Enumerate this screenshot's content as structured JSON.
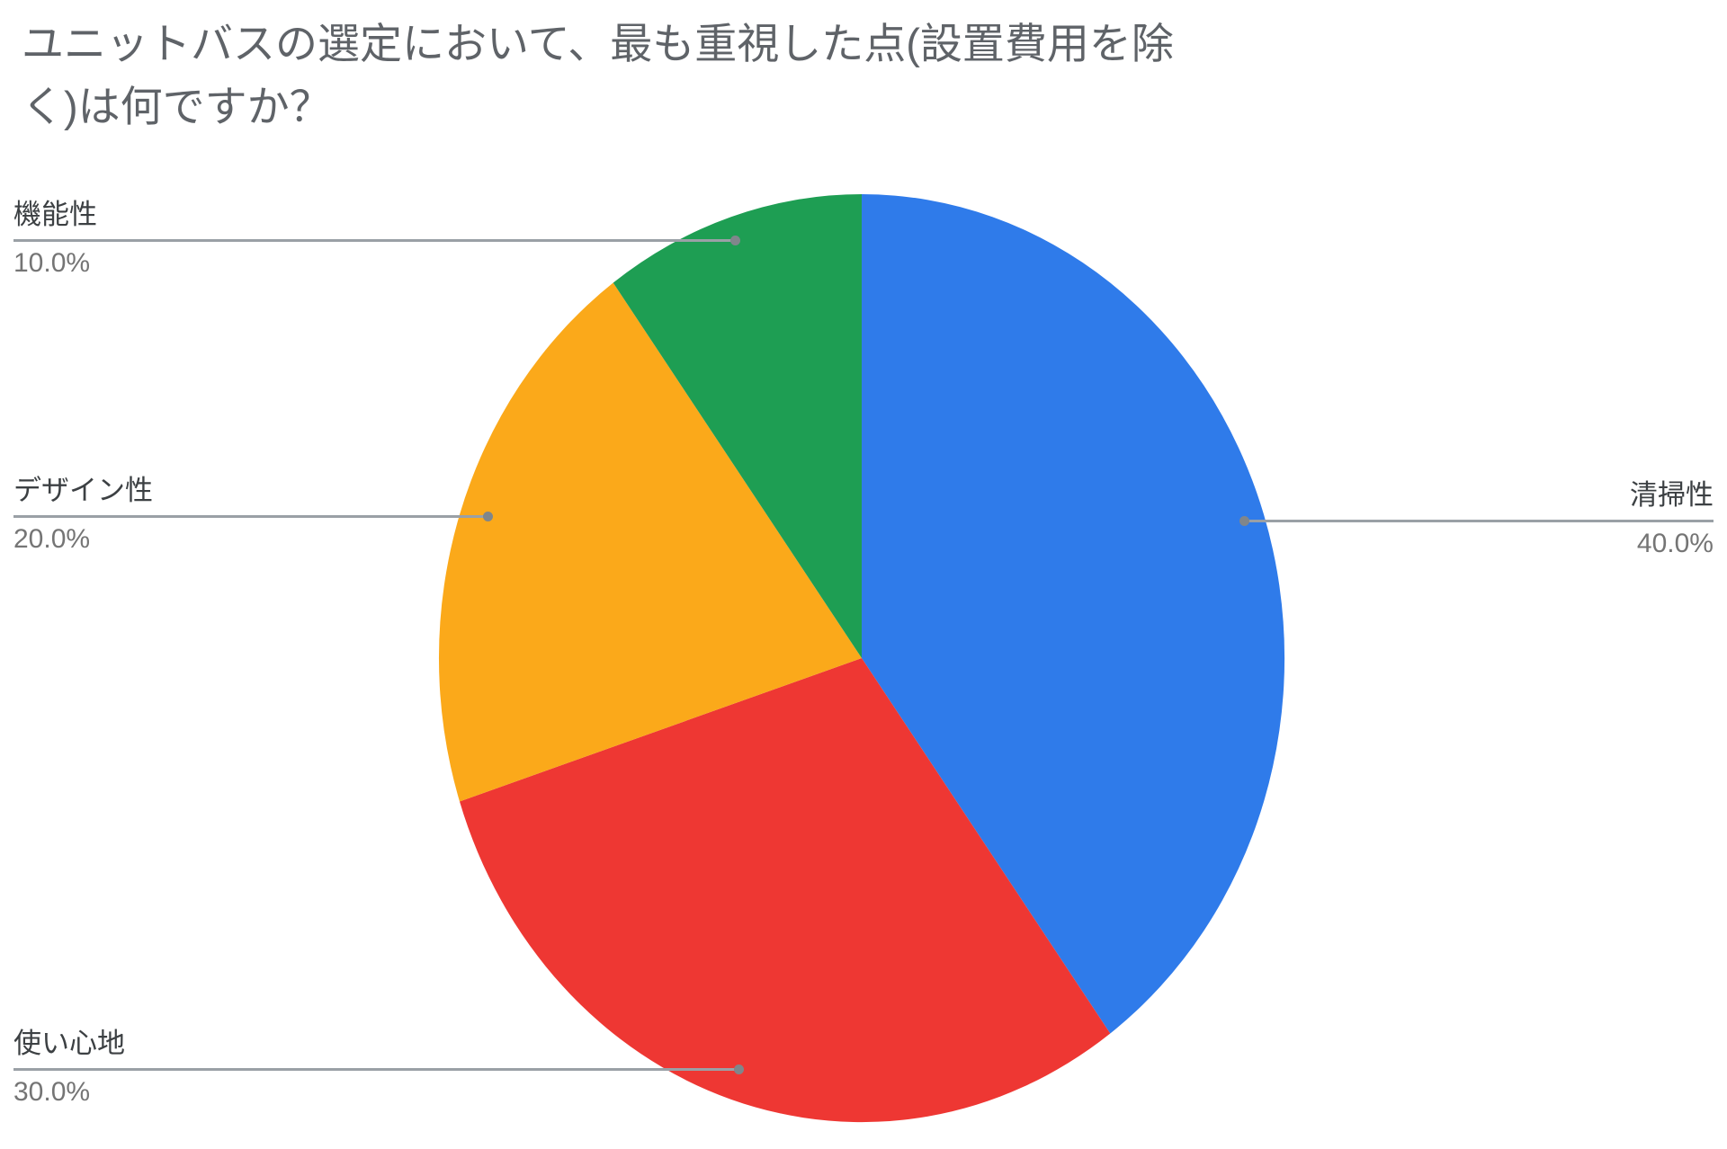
{
  "title": {
    "text": "ユニットバスの選定において、最も重視した点(設置費用を除く)は何ですか？",
    "lines": [
      "ユニットバスの選定において、最も重視した点(設置費用を除",
      "く)は何ですか？"
    ]
  },
  "chart_data": {
    "type": "pie",
    "title": "ユニットバスの選定において、最も重視した点(設置費用を除く)は何ですか？",
    "start_angle_deg": 0,
    "direction": "clockwise",
    "legend_position": "none",
    "label_style": "outside-callouts-with-percent",
    "slices": [
      {
        "label": "清掃性",
        "value": 40.0,
        "percent_label": "40.0%",
        "color": "#2F7BEA",
        "callout_side": "right"
      },
      {
        "label": "使い心地",
        "value": 30.0,
        "percent_label": "30.0%",
        "color": "#EE3733",
        "callout_side": "left"
      },
      {
        "label": "デザイン性",
        "value": 20.0,
        "percent_label": "20.0%",
        "color": "#FBA91A",
        "callout_side": "left"
      },
      {
        "label": "機能性",
        "value": 10.0,
        "percent_label": "10.0%",
        "color": "#1E9E53",
        "callout_side": "left"
      }
    ],
    "colors": {
      "title_text": "#5F6368",
      "label_text": "#3C4043",
      "percent_text": "#757575",
      "leader_line": "#9AA0A6",
      "leader_dot": "#80868B",
      "background": "#FFFFFF"
    }
  }
}
